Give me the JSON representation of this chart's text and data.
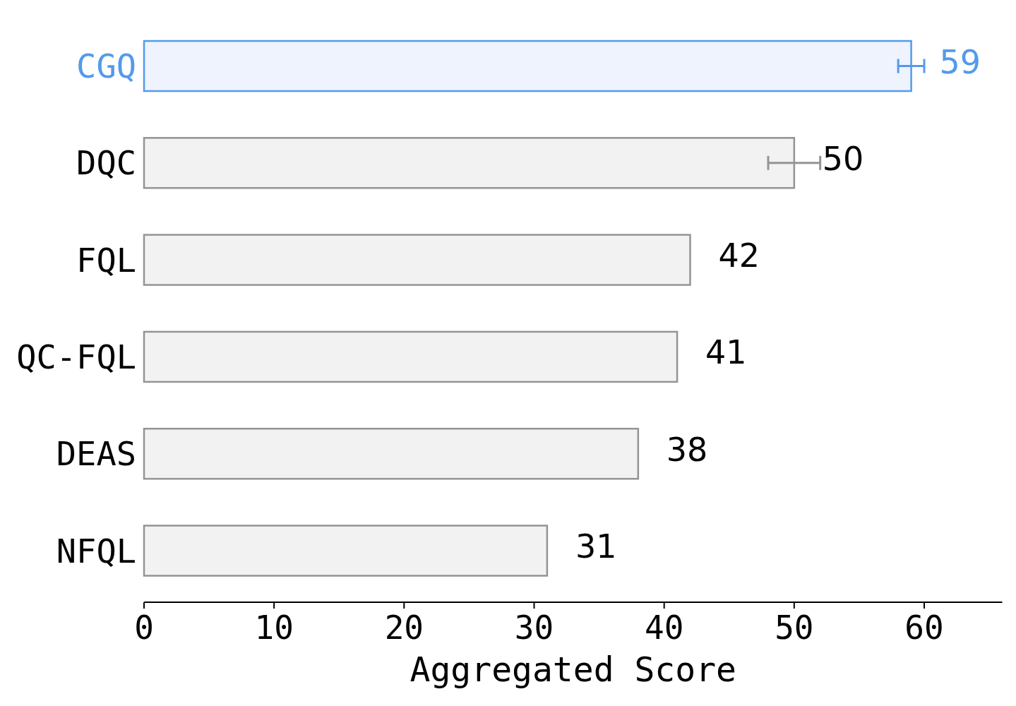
{
  "chart_data": {
    "type": "bar",
    "orientation": "horizontal",
    "categories": [
      "CGQ",
      "DQC",
      "FQL",
      "QC-FQL",
      "DEAS",
      "NFQL"
    ],
    "values": [
      59,
      50,
      42,
      41,
      38,
      31
    ],
    "errors": [
      1,
      2,
      null,
      null,
      null,
      null
    ],
    "colors": [
      "#eef3fd",
      "#f2f2f2",
      "#f2f2f2",
      "#f2f2f2",
      "#f2f2f2",
      "#f2f2f2"
    ],
    "xlabel": "Aggregated Score",
    "xlim": [
      0,
      66
    ],
    "xticks": [
      0,
      10,
      20,
      30,
      40,
      50,
      60
    ],
    "data_labels": true
  }
}
